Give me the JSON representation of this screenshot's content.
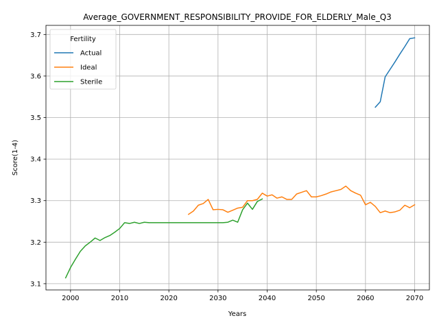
{
  "chart_data": {
    "type": "line",
    "title": "Average_GOVERNMENT_RESPONSIBILITY_PROVIDE_FOR_ELDERLY_Male_Q3",
    "xlabel": "Years",
    "ylabel": "Score(1-4)",
    "xlim": [
      1995,
      2073
    ],
    "ylim": [
      3.085,
      3.722
    ],
    "xticks": [
      2000,
      2010,
      2020,
      2030,
      2040,
      2050,
      2060,
      2070
    ],
    "yticks": [
      3.1,
      3.2,
      3.3,
      3.4,
      3.5,
      3.6,
      3.7
    ],
    "xtick_labels": [
      "2000",
      "2010",
      "2020",
      "2030",
      "2040",
      "2050",
      "2060",
      "2070"
    ],
    "ytick_labels": [
      "3.1",
      "3.2",
      "3.3",
      "3.4",
      "3.5",
      "3.6",
      "3.7"
    ],
    "grid": true,
    "legend": {
      "title": "Fertility",
      "placement": "upper-left"
    },
    "series": [
      {
        "name": "Actual",
        "color": "#1f77b4",
        "x": [
          2062,
          2063,
          2064,
          2065,
          2066,
          2067,
          2068,
          2069,
          2070
        ],
        "y": [
          3.525,
          3.538,
          3.598,
          3.616,
          3.634,
          3.653,
          3.671,
          3.69,
          3.692
        ]
      },
      {
        "name": "Ideal",
        "color": "#ff7f0e",
        "x": [
          2024,
          2025,
          2026,
          2027,
          2028,
          2029,
          2030,
          2031,
          2032,
          2033,
          2034,
          2035,
          2036,
          2037,
          2038,
          2039,
          2040,
          2041,
          2042,
          2043,
          2044,
          2045,
          2046,
          2047,
          2048,
          2049,
          2050,
          2051,
          2052,
          2053,
          2054,
          2055,
          2056,
          2057,
          2058,
          2059,
          2060,
          2061,
          2062,
          2063,
          2064,
          2065,
          2066,
          2067,
          2068,
          2069,
          2070
        ],
        "y": [
          3.267,
          3.275,
          3.289,
          3.293,
          3.303,
          3.278,
          3.279,
          3.278,
          3.272,
          3.277,
          3.282,
          3.284,
          3.3,
          3.3,
          3.303,
          3.318,
          3.311,
          3.314,
          3.306,
          3.309,
          3.303,
          3.303,
          3.316,
          3.32,
          3.324,
          3.309,
          3.309,
          3.312,
          3.316,
          3.321,
          3.324,
          3.327,
          3.335,
          3.324,
          3.318,
          3.313,
          3.29,
          3.296,
          3.286,
          3.271,
          3.275,
          3.271,
          3.273,
          3.277,
          3.289,
          3.283,
          3.29
        ]
      },
      {
        "name": "Sterile",
        "color": "#2ca02c",
        "x": [
          1999,
          2000,
          2001,
          2002,
          2003,
          2004,
          2005,
          2006,
          2007,
          2008,
          2009,
          2010,
          2011,
          2012,
          2013,
          2014,
          2015,
          2016,
          2017,
          2018,
          2019,
          2020,
          2021,
          2022,
          2023,
          2024,
          2025,
          2026,
          2027,
          2028,
          2029,
          2030,
          2031,
          2032,
          2033,
          2034,
          2035,
          2036,
          2037,
          2038,
          2039
        ],
        "y": [
          3.114,
          3.139,
          3.159,
          3.178,
          3.191,
          3.2,
          3.21,
          3.204,
          3.211,
          3.216,
          3.224,
          3.233,
          3.247,
          3.245,
          3.248,
          3.245,
          3.248,
          3.247,
          3.247,
          3.247,
          3.247,
          3.247,
          3.247,
          3.247,
          3.247,
          3.247,
          3.247,
          3.247,
          3.247,
          3.247,
          3.247,
          3.247,
          3.247,
          3.248,
          3.253,
          3.248,
          3.278,
          3.294,
          3.279,
          3.298,
          3.304
        ]
      }
    ]
  }
}
